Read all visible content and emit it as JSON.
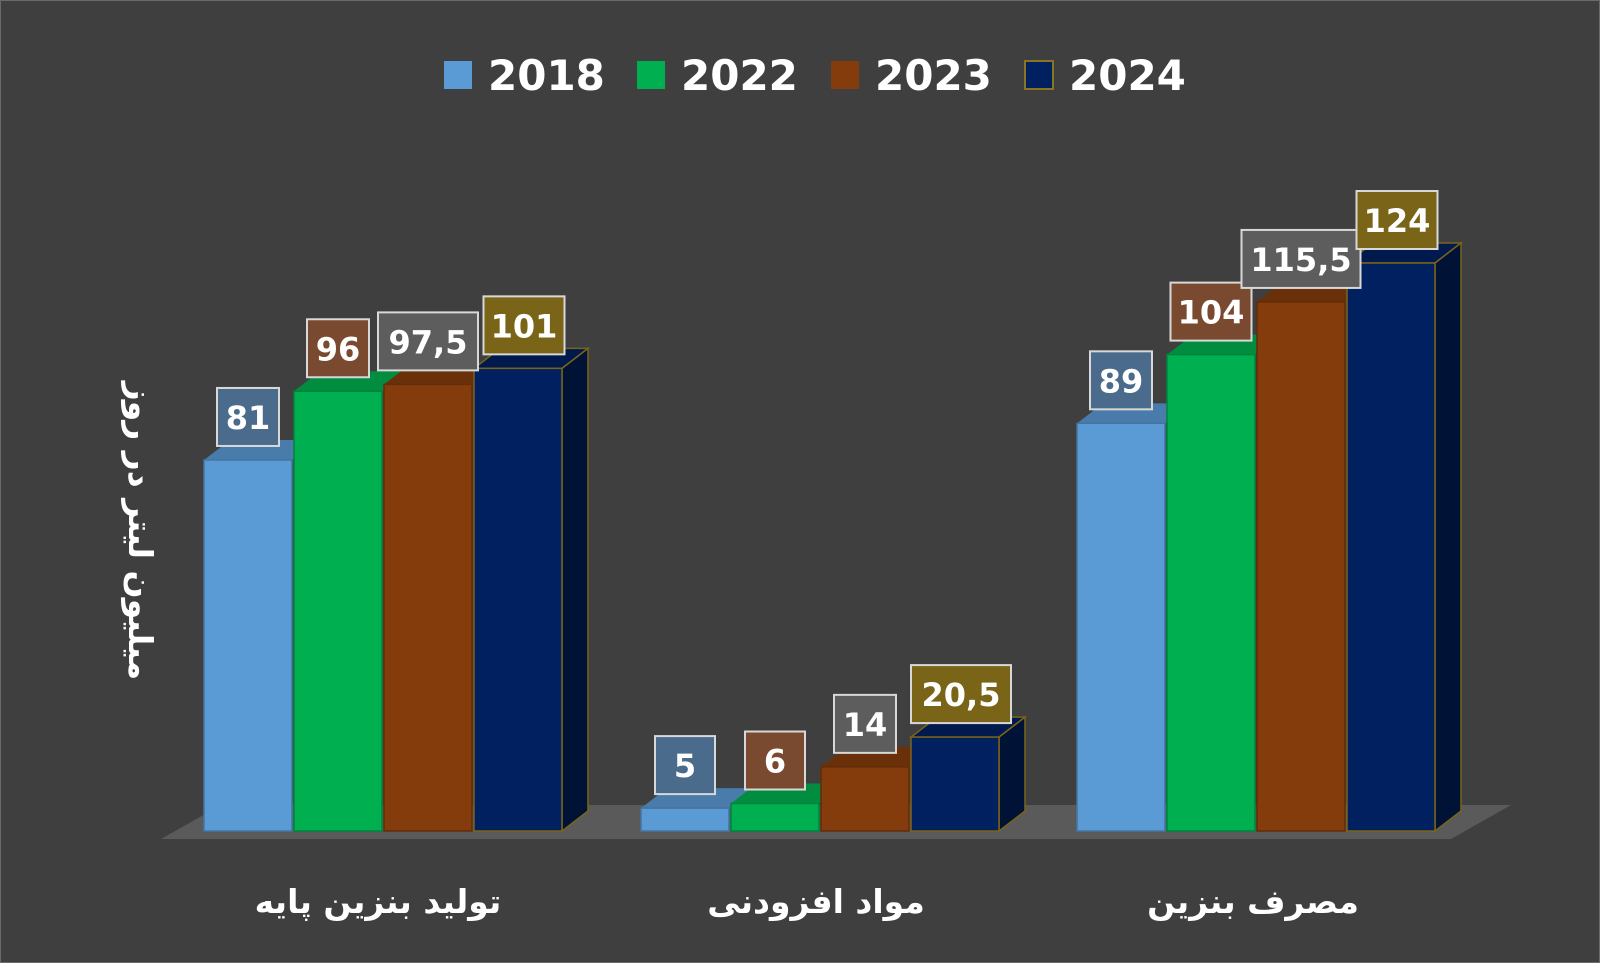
{
  "chart_data": {
    "type": "bar",
    "ylabel": "میلیون لیتر در روز",
    "categories": [
      "تولید بنزین پایه",
      "مواد افزودنی",
      "مصرف بنزین"
    ],
    "series": [
      {
        "name": "2018",
        "values": [
          81,
          5,
          89
        ],
        "labels": [
          "81",
          "5",
          "89"
        ]
      },
      {
        "name": "2022",
        "values": [
          96,
          6,
          104
        ],
        "labels": [
          "96",
          "6",
          "104"
        ]
      },
      {
        "name": "2023",
        "values": [
          97.5,
          14,
          115.5
        ],
        "labels": [
          "97,5",
          "14",
          "115,5"
        ]
      },
      {
        "name": "2024",
        "values": [
          101,
          20.5,
          124
        ],
        "labels": [
          "101",
          "20,5",
          "124"
        ]
      }
    ],
    "ylim": [
      0,
      155
    ],
    "grid": false,
    "legend_position": "top-center",
    "colors": {
      "2018": "#5b9bd5",
      "2022": "#00b050",
      "2023": "#843c0c",
      "2024": "#002060",
      "background": "#3f3f3f",
      "floor": "#5a5a5a"
    },
    "label_box_colors": {
      "2018": "#4a6b8c",
      "2022": "#7a4a30",
      "2023": "#5d5d5d",
      "2024": "#7a6418"
    }
  }
}
